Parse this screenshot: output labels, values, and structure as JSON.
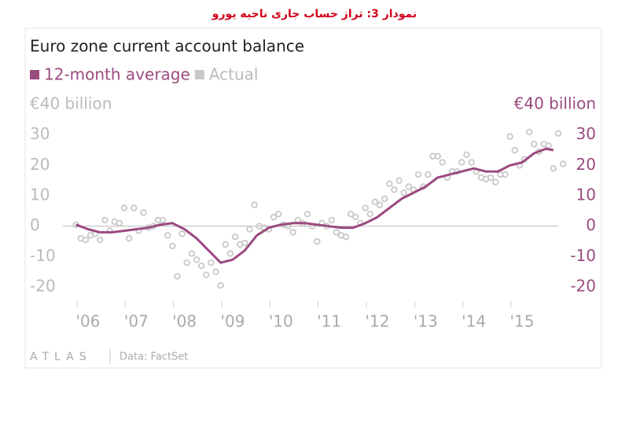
{
  "caption": "نمودار 3: تراز حساب جاری ناحیه یورو",
  "chart_data": {
    "type": "line",
    "title": "Euro zone current account balance",
    "source": "Data: FactSet",
    "brand": "ATLAS",
    "xlim": [
      2005.5,
      2016
    ],
    "xticks": [
      {
        "value": 2006,
        "label": "'06"
      },
      {
        "value": 2007,
        "label": "'07"
      },
      {
        "value": 2008,
        "label": "'08"
      },
      {
        "value": 2009,
        "label": "'09"
      },
      {
        "value": 2010,
        "label": "'10"
      },
      {
        "value": 2011,
        "label": "'11"
      },
      {
        "value": 2012,
        "label": "'12"
      },
      {
        "value": 2013,
        "label": "'13"
      },
      {
        "value": 2014,
        "label": "'14"
      },
      {
        "value": 2015,
        "label": "'15"
      }
    ],
    "ylim": [
      -20,
      40
    ],
    "yticks": [
      -20,
      -10,
      0,
      10,
      20,
      30,
      {
        "value": 40,
        "label": "€40 billion"
      }
    ],
    "y2lim": [
      -20,
      40
    ],
    "y2ticks": [
      -20,
      -10,
      0,
      10,
      20,
      30,
      {
        "value": 40,
        "label": "€40 billion"
      }
    ],
    "grid": false,
    "series": [
      {
        "name": "12-month average",
        "color": "#9b4a7f",
        "style": "line",
        "axis": "y2",
        "x": [
          2005.75,
          2006.0,
          2006.25,
          2006.5,
          2006.75,
          2007.0,
          2007.25,
          2007.5,
          2007.75,
          2008.0,
          2008.25,
          2008.5,
          2008.75,
          2009.0,
          2009.25,
          2009.5,
          2009.75,
          2010.0,
          2010.25,
          2010.5,
          2010.75,
          2011.0,
          2011.25,
          2011.5,
          2011.75,
          2012.0,
          2012.25,
          2012.5,
          2012.75,
          2013.0,
          2013.25,
          2013.5,
          2013.75,
          2014.0,
          2014.25,
          2014.5,
          2014.75,
          2015.0,
          2015.25,
          2015.5,
          2015.65
        ],
        "values": [
          0.5,
          -1,
          -2,
          -2,
          -1.5,
          -1,
          -0.5,
          0.5,
          1,
          -1,
          -4,
          -8,
          -12,
          -11,
          -8,
          -3,
          -0.5,
          0.5,
          1,
          1,
          0.5,
          0,
          -0.5,
          -0.5,
          1,
          3,
          6,
          9,
          11,
          13,
          16,
          17,
          18,
          19,
          18,
          18,
          20,
          21,
          24,
          25.5,
          25
        ]
      },
      {
        "name": "Actual",
        "color": "#c8c8c8",
        "style": "markers",
        "x": [
          2005.75,
          2005.85,
          2005.95,
          2006.05,
          2006.15,
          2006.25,
          2006.35,
          2006.45,
          2006.55,
          2006.65,
          2006.75,
          2006.85,
          2006.95,
          2007.05,
          2007.15,
          2007.25,
          2007.35,
          2007.45,
          2007.55,
          2007.65,
          2007.75,
          2007.85,
          2007.95,
          2008.05,
          2008.15,
          2008.25,
          2008.35,
          2008.45,
          2008.55,
          2008.65,
          2008.75,
          2008.85,
          2008.95,
          2009.05,
          2009.15,
          2009.25,
          2009.35,
          2009.45,
          2009.55,
          2009.65,
          2009.75,
          2009.85,
          2009.95,
          2010.05,
          2010.15,
          2010.25,
          2010.35,
          2010.45,
          2010.55,
          2010.65,
          2010.75,
          2010.85,
          2010.95,
          2011.05,
          2011.15,
          2011.25,
          2011.35,
          2011.45,
          2011.55,
          2011.65,
          2011.75,
          2011.85,
          2011.95,
          2012.05,
          2012.15,
          2012.25,
          2012.35,
          2012.45,
          2012.55,
          2012.65,
          2012.75,
          2012.85,
          2012.95,
          2013.05,
          2013.15,
          2013.25,
          2013.35,
          2013.45,
          2013.55,
          2013.65,
          2013.75,
          2013.85,
          2013.95,
          2014.05,
          2014.15,
          2014.25,
          2014.35,
          2014.45,
          2014.55,
          2014.65,
          2014.75,
          2014.85,
          2014.95,
          2015.05,
          2015.15,
          2015.25,
          2015.35,
          2015.45,
          2015.55,
          2015.65,
          2015.75,
          2015.85
        ],
        "values": [
          0.5,
          -4,
          -4.5,
          -3,
          -2.5,
          -4.5,
          2,
          -1.5,
          1.5,
          1,
          6,
          -4,
          6,
          -1.5,
          4.5,
          -0.5,
          0,
          2,
          2,
          -3,
          -6.5,
          -16.5,
          -2.5,
          -12,
          -9,
          -11,
          -13,
          -16,
          -12,
          -15,
          -19.5,
          -6,
          -9,
          -3.5,
          -6,
          -5.5,
          -1,
          7,
          0,
          -0.5,
          -1,
          3,
          4,
          0.5,
          0,
          -2,
          2,
          1,
          4,
          0,
          -5,
          1,
          0,
          2,
          -2,
          -3,
          -3.5,
          4,
          3,
          1,
          6,
          4,
          8,
          7,
          9,
          14,
          12,
          15,
          11,
          13,
          12,
          17,
          13,
          17,
          23,
          23,
          21,
          16,
          18,
          18,
          21,
          23.5,
          21,
          18,
          16,
          15.5,
          16,
          14.5,
          17,
          17,
          29.5,
          25,
          20,
          22,
          31,
          27,
          24.5,
          27,
          26.5,
          19,
          30.5,
          20.5
        ]
      }
    ]
  }
}
